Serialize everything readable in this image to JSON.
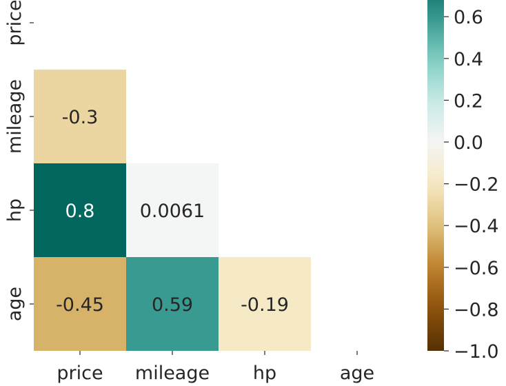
{
  "chart_data": {
    "type": "heatmap",
    "title": "",
    "xlabel": "",
    "ylabel": "",
    "x_labels": [
      "price",
      "mileage",
      "hp",
      "age"
    ],
    "y_labels": [
      "price",
      "mileage",
      "hp",
      "age"
    ],
    "mask": "upper-triangle-including-diagonal",
    "cells": [
      {
        "row": "mileage",
        "col": "price",
        "value": -0.3,
        "label": "-0.3"
      },
      {
        "row": "hp",
        "col": "price",
        "value": 0.8,
        "label": "0.8"
      },
      {
        "row": "hp",
        "col": "mileage",
        "value": 0.0061,
        "label": "0.0061"
      },
      {
        "row": "age",
        "col": "price",
        "value": -0.45,
        "label": "-0.45"
      },
      {
        "row": "age",
        "col": "mileage",
        "value": 0.59,
        "label": "0.59"
      },
      {
        "row": "age",
        "col": "hp",
        "value": -0.19,
        "label": "-0.19"
      }
    ],
    "colormap": "BrBG",
    "colorbar": {
      "vmin": -1.0,
      "vmax": 0.68,
      "ticks": [
        0.6,
        0.4,
        0.2,
        0.0,
        -0.2,
        -0.4,
        -0.6,
        -0.8,
        -1.0
      ],
      "tick_labels": [
        "0.6",
        "0.4",
        "0.2",
        "0.0",
        "−0.2",
        "−0.4",
        "−0.6",
        "−0.8",
        "−1.0"
      ],
      "placement": "right"
    },
    "grid": false,
    "legend": "colorbar-right"
  }
}
